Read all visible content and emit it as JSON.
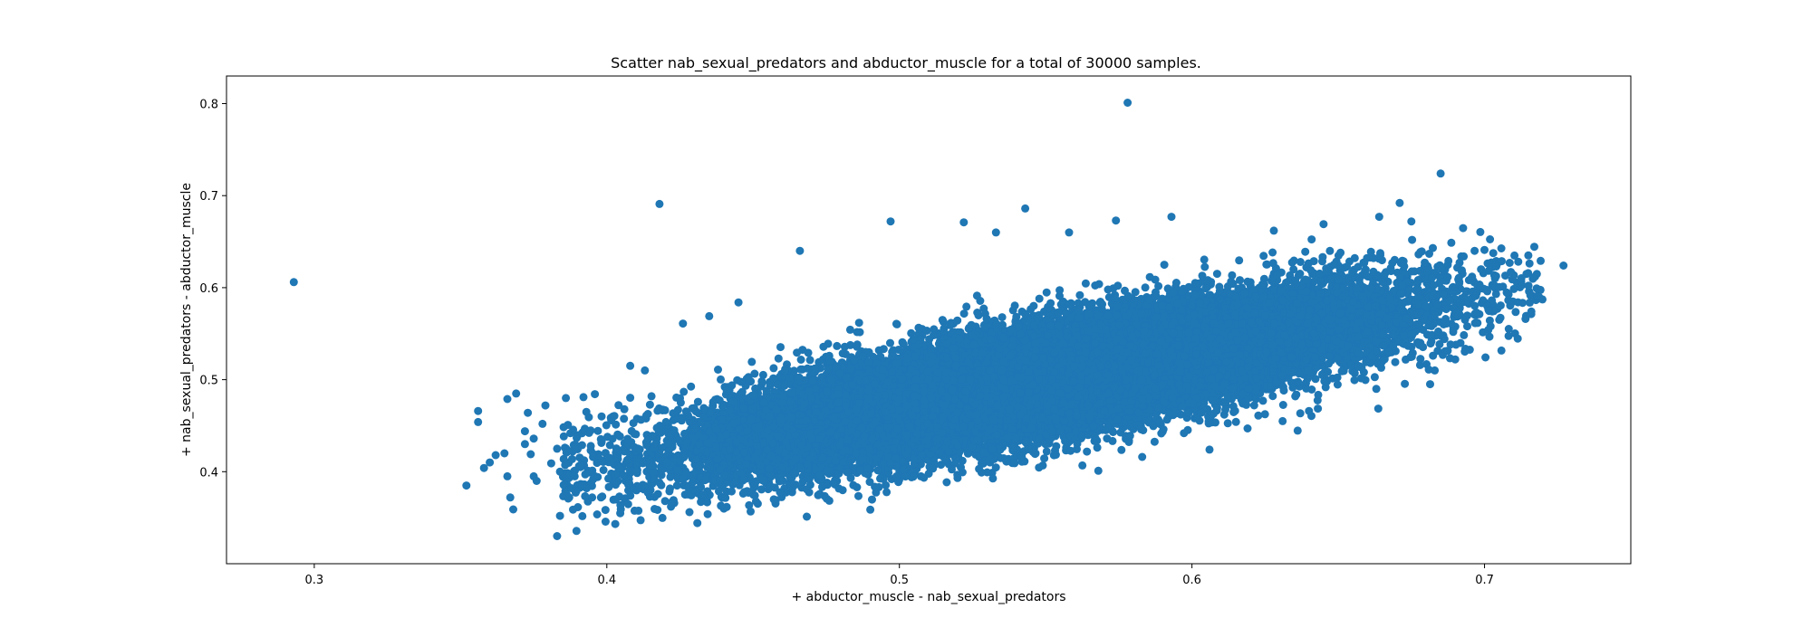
{
  "chart_data": {
    "type": "scatter",
    "title": "Scatter nab_sexual_predators and abductor_muscle for a total of 30000 samples.",
    "xlabel": "+ abductor_muscle - nab_sexual_predators",
    "ylabel": "+ nab_sexual_predators - abductor_muscle",
    "xlim": [
      0.27,
      0.75
    ],
    "ylim": [
      0.3,
      0.83
    ],
    "xticks": [
      "0.3",
      "0.4",
      "0.5",
      "0.6",
      "0.7"
    ],
    "yticks": [
      "0.4",
      "0.5",
      "0.6",
      "0.7",
      "0.8"
    ],
    "grid": false,
    "legend": "none",
    "color": "#1f77b4",
    "sample_count": 30000,
    "cluster": {
      "x_mean": 0.55,
      "x_std": 0.055,
      "y_intercept": 0.5,
      "y_slope": 0.62,
      "y_std": 0.028,
      "x_min": 0.385,
      "x_max": 0.72
    },
    "outliers": [
      {
        "x": 0.293,
        "y": 0.606
      },
      {
        "x": 0.578,
        "y": 0.801
      },
      {
        "x": 0.685,
        "y": 0.724
      },
      {
        "x": 0.418,
        "y": 0.691
      },
      {
        "x": 0.543,
        "y": 0.686
      },
      {
        "x": 0.671,
        "y": 0.692
      },
      {
        "x": 0.497,
        "y": 0.672
      },
      {
        "x": 0.522,
        "y": 0.671
      },
      {
        "x": 0.727,
        "y": 0.624
      },
      {
        "x": 0.352,
        "y": 0.385
      },
      {
        "x": 0.356,
        "y": 0.466
      },
      {
        "x": 0.356,
        "y": 0.454
      },
      {
        "x": 0.358,
        "y": 0.404
      },
      {
        "x": 0.36,
        "y": 0.41
      },
      {
        "x": 0.362,
        "y": 0.418
      },
      {
        "x": 0.365,
        "y": 0.42
      },
      {
        "x": 0.366,
        "y": 0.395
      },
      {
        "x": 0.366,
        "y": 0.479
      },
      {
        "x": 0.367,
        "y": 0.372
      },
      {
        "x": 0.368,
        "y": 0.359
      },
      {
        "x": 0.369,
        "y": 0.485
      },
      {
        "x": 0.372,
        "y": 0.444
      },
      {
        "x": 0.372,
        "y": 0.43
      },
      {
        "x": 0.373,
        "y": 0.464
      },
      {
        "x": 0.374,
        "y": 0.419
      },
      {
        "x": 0.375,
        "y": 0.395
      },
      {
        "x": 0.375,
        "y": 0.436
      },
      {
        "x": 0.376,
        "y": 0.39
      },
      {
        "x": 0.378,
        "y": 0.452
      },
      {
        "x": 0.381,
        "y": 0.409
      },
      {
        "x": 0.383,
        "y": 0.33
      },
      {
        "x": 0.384,
        "y": 0.352
      },
      {
        "x": 0.384,
        "y": 0.4
      },
      {
        "x": 0.386,
        "y": 0.48
      },
      {
        "x": 0.388,
        "y": 0.382
      },
      {
        "x": 0.389,
        "y": 0.395
      },
      {
        "x": 0.391,
        "y": 0.405
      },
      {
        "x": 0.395,
        "y": 0.372
      },
      {
        "x": 0.398,
        "y": 0.372
      },
      {
        "x": 0.396,
        "y": 0.395
      },
      {
        "x": 0.401,
        "y": 0.415
      },
      {
        "x": 0.383,
        "y": 0.425
      },
      {
        "x": 0.379,
        "y": 0.472
      },
      {
        "x": 0.393,
        "y": 0.465
      },
      {
        "x": 0.392,
        "y": 0.481
      },
      {
        "x": 0.418,
        "y": 0.388
      },
      {
        "x": 0.424,
        "y": 0.385
      },
      {
        "x": 0.427,
        "y": 0.385
      },
      {
        "x": 0.439,
        "y": 0.363
      },
      {
        "x": 0.433,
        "y": 0.375
      },
      {
        "x": 0.447,
        "y": 0.378
      },
      {
        "x": 0.456,
        "y": 0.384
      },
      {
        "x": 0.467,
        "y": 0.389
      },
      {
        "x": 0.478,
        "y": 0.386
      },
      {
        "x": 0.568,
        "y": 0.401
      },
      {
        "x": 0.583,
        "y": 0.416
      },
      {
        "x": 0.606,
        "y": 0.424
      },
      {
        "x": 0.619,
        "y": 0.447
      },
      {
        "x": 0.631,
        "y": 0.455
      },
      {
        "x": 0.64,
        "y": 0.466
      },
      {
        "x": 0.663,
        "y": 0.49
      },
      {
        "x": 0.683,
        "y": 0.51
      },
      {
        "x": 0.69,
        "y": 0.522
      },
      {
        "x": 0.714,
        "y": 0.566
      },
      {
        "x": 0.716,
        "y": 0.574
      },
      {
        "x": 0.718,
        "y": 0.591
      },
      {
        "x": 0.709,
        "y": 0.617
      },
      {
        "x": 0.704,
        "y": 0.623
      },
      {
        "x": 0.7,
        "y": 0.641
      },
      {
        "x": 0.664,
        "y": 0.677
      },
      {
        "x": 0.675,
        "y": 0.672
      },
      {
        "x": 0.645,
        "y": 0.669
      },
      {
        "x": 0.628,
        "y": 0.662
      },
      {
        "x": 0.593,
        "y": 0.677
      },
      {
        "x": 0.574,
        "y": 0.673
      },
      {
        "x": 0.558,
        "y": 0.66
      },
      {
        "x": 0.533,
        "y": 0.66
      },
      {
        "x": 0.466,
        "y": 0.64
      },
      {
        "x": 0.426,
        "y": 0.561
      },
      {
        "x": 0.435,
        "y": 0.569
      },
      {
        "x": 0.445,
        "y": 0.584
      },
      {
        "x": 0.408,
        "y": 0.515
      },
      {
        "x": 0.413,
        "y": 0.51
      }
    ]
  }
}
